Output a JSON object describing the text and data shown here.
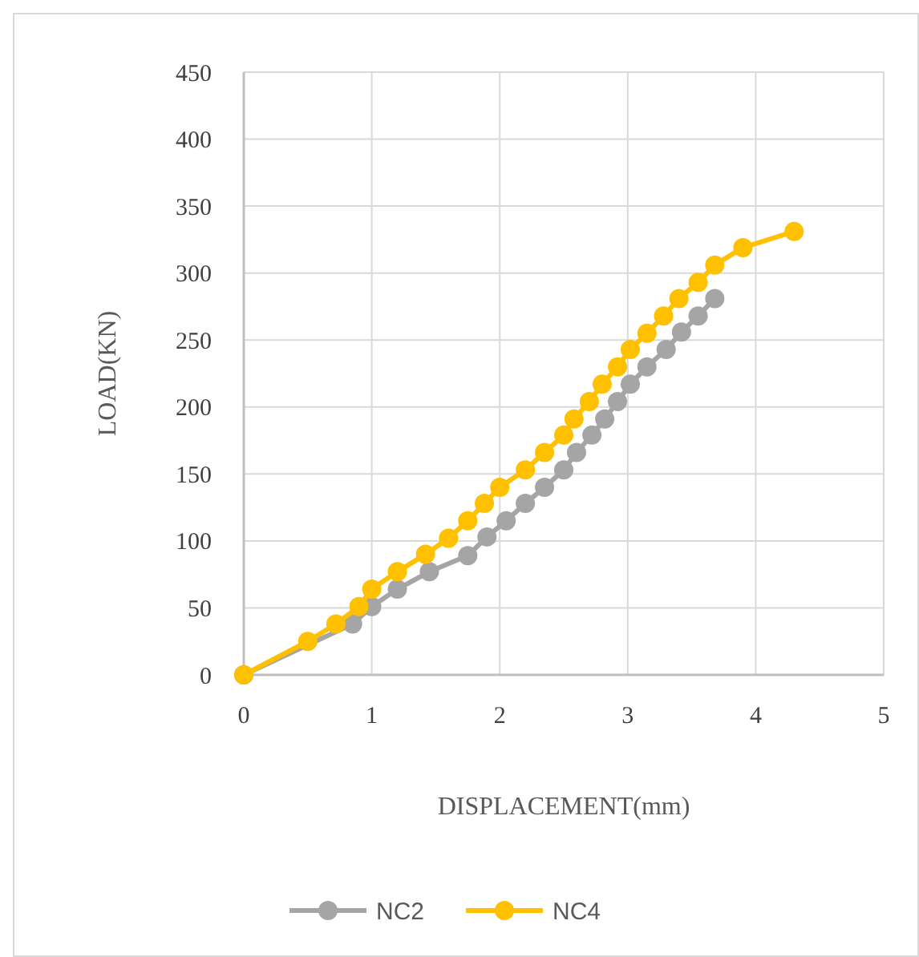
{
  "chart_data": {
    "type": "line",
    "xlabel": "DISPLACEMENT(mm)",
    "ylabel": "LOAD(KN)",
    "xlim": [
      0,
      5
    ],
    "xticks": [
      0,
      1,
      2,
      3,
      4,
      5
    ],
    "ylim": [
      0,
      450
    ],
    "yticks": [
      0,
      50,
      100,
      150,
      200,
      250,
      300,
      350,
      400,
      450
    ],
    "grid": true,
    "legend": "bottom",
    "marker": "circle",
    "line_style": "solid",
    "series": [
      {
        "name": "NC2",
        "color": "#a5a5a5",
        "x": [
          0,
          0.5,
          0.85,
          1.0,
          1.2,
          1.45,
          1.75,
          1.9,
          2.05,
          2.2,
          2.35,
          2.5,
          2.6,
          2.72,
          2.82,
          2.92,
          3.02,
          3.15,
          3.3,
          3.42,
          3.55,
          3.68
        ],
        "values": [
          0,
          null,
          38,
          51,
          64,
          77,
          89,
          103,
          115,
          128,
          140,
          153,
          166,
          179,
          191,
          204,
          217,
          230,
          243,
          256,
          268,
          281
        ]
      },
      {
        "name": "NC4",
        "color": "#ffc000",
        "x": [
          0,
          0.5,
          0.72,
          0.9,
          1.0,
          1.2,
          1.42,
          1.6,
          1.75,
          1.88,
          2.0,
          2.2,
          2.35,
          2.5,
          2.58,
          2.7,
          2.8,
          2.92,
          3.02,
          3.15,
          3.28,
          3.4,
          3.55,
          3.68,
          3.9,
          4.3
        ],
        "values": [
          0,
          25,
          38,
          51,
          64,
          77,
          90,
          102,
          115,
          128,
          140,
          153,
          166,
          179,
          191,
          204,
          217,
          230,
          243,
          255,
          268,
          281,
          293,
          306,
          319,
          331
        ]
      }
    ]
  }
}
